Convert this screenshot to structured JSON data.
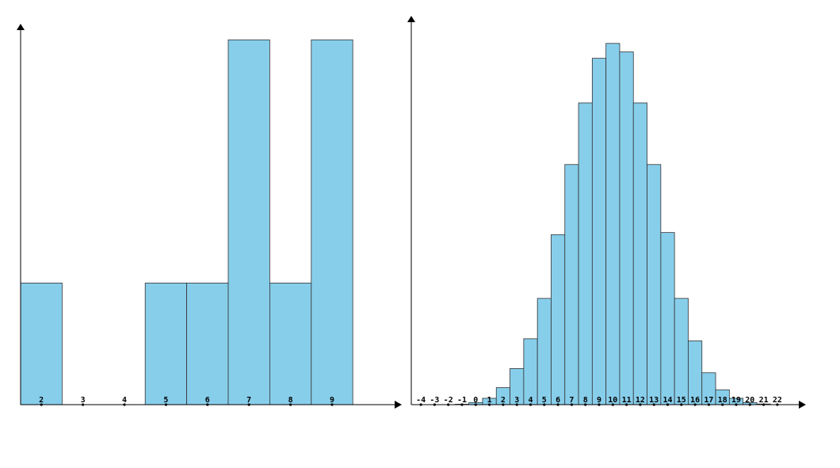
{
  "chart_data": [
    {
      "type": "bar",
      "x": [
        2,
        3,
        4,
        5,
        6,
        7,
        8,
        9
      ],
      "categories": [
        "2",
        "3",
        "4",
        "5",
        "6",
        "7",
        "8",
        "9"
      ],
      "values": [
        1,
        0,
        0,
        1,
        1,
        3,
        1,
        3
      ],
      "xlim": [
        1.5,
        10.5
      ],
      "ylim": [
        0,
        3.08
      ],
      "title": "",
      "xlabel": "",
      "ylabel": "",
      "grid": false,
      "legend": "none",
      "bar_color": "#87ceeb"
    },
    {
      "type": "bar",
      "x": [
        -4,
        -3,
        -2,
        -1,
        0,
        1,
        2,
        3,
        4,
        5,
        6,
        7,
        8,
        9,
        10,
        11,
        12,
        13,
        14,
        15,
        16,
        17,
        18,
        19,
        20,
        21,
        22
      ],
      "categories": [
        "-4",
        "-3",
        "-2",
        "-1",
        "0",
        "1",
        "2",
        "3",
        "4",
        "5",
        "6",
        "7",
        "8",
        "9",
        "10",
        "11",
        "12",
        "13",
        "14",
        "15",
        "16",
        "17",
        "18",
        "19",
        "20",
        "21",
        "22"
      ],
      "values": [
        0,
        0,
        0,
        0.0002,
        0.001,
        0.003,
        0.008,
        0.017,
        0.031,
        0.05,
        0.08,
        0.113,
        0.142,
        0.163,
        0.17,
        0.166,
        0.142,
        0.113,
        0.081,
        0.05,
        0.03,
        0.015,
        0.007,
        0.003,
        0.001,
        0.0003,
        0
      ],
      "xlim": [
        -4.7,
        23.5
      ],
      "ylim": [
        0,
        0.18
      ],
      "title": "",
      "xlabel": "",
      "ylabel": "",
      "grid": false,
      "legend": "none",
      "bar_color": "#87ceeb"
    }
  ]
}
